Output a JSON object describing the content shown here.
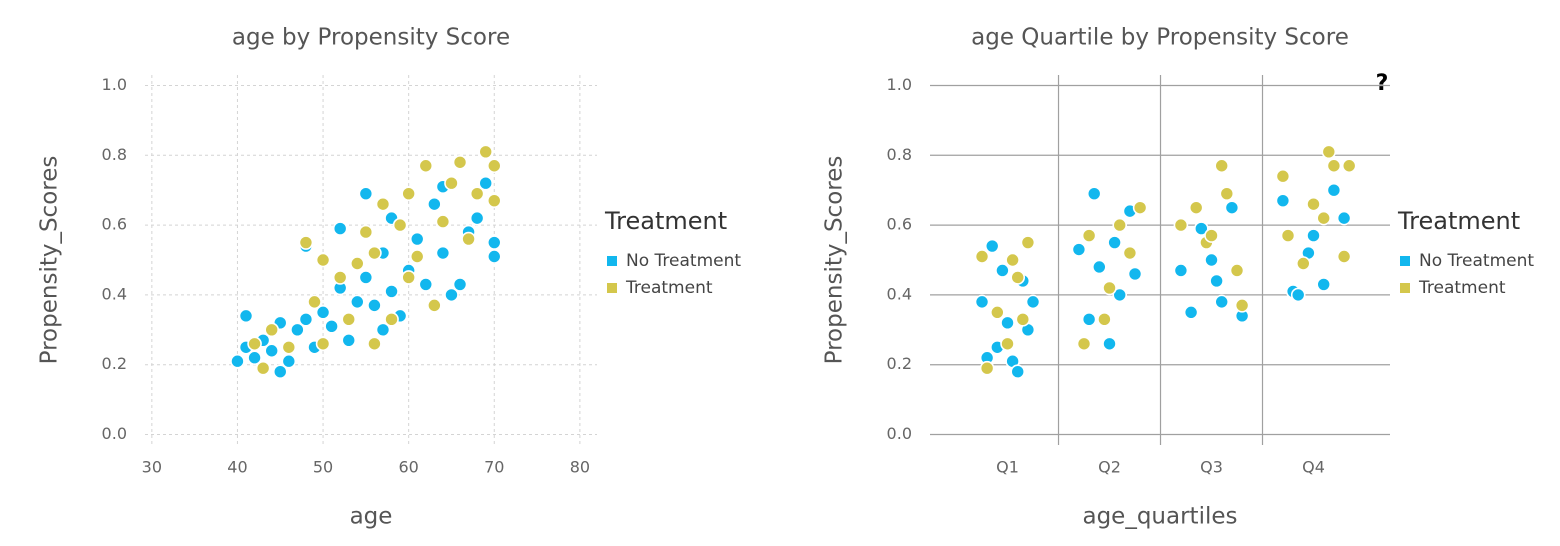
{
  "help_icon": "?",
  "chart_data": [
    {
      "type": "scatter",
      "title": "age by Propensity Score",
      "x_label": "age",
      "y_label": "Propensity_Scores",
      "xlim": [
        29.2,
        82
      ],
      "xticks": [
        30,
        40,
        50,
        60,
        70,
        80
      ],
      "ylim": [
        -0.03,
        1.03
      ],
      "yticks": [
        {
          "value": 0.0,
          "label": "0.0"
        },
        0.2,
        0.4,
        0.6,
        0.8,
        {
          "value": 1.0,
          "label": "1.0"
        }
      ],
      "grid": true,
      "grid_style": "dashed",
      "legend_title": "Treatment",
      "legend_position": "right",
      "series": [
        {
          "name": "No Treatment",
          "color": "#12b7ee",
          "x": [
            40,
            41,
            41,
            42,
            43,
            44,
            45,
            45,
            46,
            47,
            48,
            48,
            49,
            50,
            51,
            52,
            52,
            53,
            54,
            55,
            55,
            56,
            57,
            58,
            58,
            59,
            60,
            61,
            62,
            63,
            64,
            65,
            66,
            67,
            68,
            69,
            70,
            70,
            64,
            57
          ],
          "values": [
            0.21,
            0.34,
            0.25,
            0.22,
            0.27,
            0.24,
            0.18,
            0.32,
            0.21,
            0.3,
            0.54,
            0.33,
            0.25,
            0.35,
            0.31,
            0.59,
            0.42,
            0.27,
            0.38,
            0.69,
            0.45,
            0.37,
            0.52,
            0.62,
            0.41,
            0.34,
            0.47,
            0.56,
            0.43,
            0.66,
            0.52,
            0.4,
            0.43,
            0.58,
            0.62,
            0.72,
            0.55,
            0.51,
            0.71,
            0.3
          ]
        },
        {
          "name": "Treatment",
          "color": "#d4c74c",
          "x": [
            42,
            43,
            44,
            46,
            48,
            49,
            50,
            50,
            52,
            53,
            54,
            55,
            56,
            57,
            58,
            59,
            60,
            61,
            62,
            63,
            64,
            65,
            66,
            67,
            68,
            69,
            70,
            70,
            60,
            56
          ],
          "values": [
            0.26,
            0.19,
            0.3,
            0.25,
            0.55,
            0.38,
            0.5,
            0.26,
            0.45,
            0.33,
            0.49,
            0.58,
            0.26,
            0.66,
            0.33,
            0.6,
            0.69,
            0.51,
            0.77,
            0.37,
            0.61,
            0.72,
            0.78,
            0.56,
            0.69,
            0.81,
            0.67,
            0.77,
            0.45,
            0.52
          ]
        }
      ]
    },
    {
      "type": "scatter",
      "title": "age Quartile by Propensity Score",
      "x_label": "age_quartiles",
      "y_label": "Propensity_Scores",
      "xlim": [
        0.24,
        4.75
      ],
      "xticks": [
        {
          "value": 1,
          "label": "Q1"
        },
        {
          "value": 2,
          "label": "Q2"
        },
        {
          "value": 3,
          "label": "Q3"
        },
        {
          "value": 4,
          "label": "Q4"
        }
      ],
      "ylim": [
        -0.03,
        1.03
      ],
      "yticks": [
        {
          "value": 0.0,
          "label": "0.0"
        },
        0.2,
        0.4,
        0.6,
        0.8,
        {
          "value": 1.0,
          "label": "1.0"
        }
      ],
      "grid": true,
      "grid_style": "solid",
      "legend_title": "Treatment",
      "legend_position": "right",
      "series": [
        {
          "name": "No Treatment",
          "color": "#12b7ee",
          "x": [
            0.75,
            0.85,
            0.95,
            1.05,
            1.15,
            1.2,
            0.9,
            1.0,
            1.1,
            0.8,
            1.25,
            1.7,
            1.85,
            1.9,
            2.0,
            2.1,
            2.2,
            2.25,
            1.8,
            2.05,
            2.7,
            2.8,
            2.9,
            3.0,
            3.1,
            3.2,
            3.3,
            3.05,
            3.7,
            3.8,
            3.85,
            3.95,
            4.1,
            4.2,
            4.3,
            4.0
          ],
          "values": [
            0.38,
            0.54,
            0.47,
            0.21,
            0.44,
            0.3,
            0.25,
            0.32,
            0.18,
            0.22,
            0.38,
            0.53,
            0.69,
            0.48,
            0.26,
            0.4,
            0.64,
            0.46,
            0.33,
            0.55,
            0.47,
            0.35,
            0.59,
            0.5,
            0.38,
            0.65,
            0.34,
            0.44,
            0.67,
            0.41,
            0.4,
            0.52,
            0.43,
            0.7,
            0.62,
            0.57
          ]
        },
        {
          "name": "Treatment",
          "color": "#d4c74c",
          "x": [
            0.75,
            0.8,
            0.9,
            1.05,
            1.1,
            1.2,
            1.0,
            1.15,
            1.75,
            1.8,
            1.95,
            2.1,
            2.2,
            2.3,
            2.0,
            2.7,
            2.85,
            2.95,
            3.1,
            3.15,
            3.25,
            3.3,
            3.0,
            3.7,
            3.75,
            3.9,
            4.0,
            4.15,
            4.2,
            4.3,
            4.35,
            4.1
          ],
          "values": [
            0.51,
            0.19,
            0.35,
            0.5,
            0.45,
            0.55,
            0.26,
            0.33,
            0.26,
            0.57,
            0.33,
            0.6,
            0.52,
            0.65,
            0.42,
            0.6,
            0.65,
            0.55,
            0.77,
            0.69,
            0.47,
            0.37,
            0.57,
            0.74,
            0.57,
            0.49,
            0.66,
            0.81,
            0.77,
            0.51,
            0.77,
            0.62
          ]
        }
      ]
    }
  ]
}
